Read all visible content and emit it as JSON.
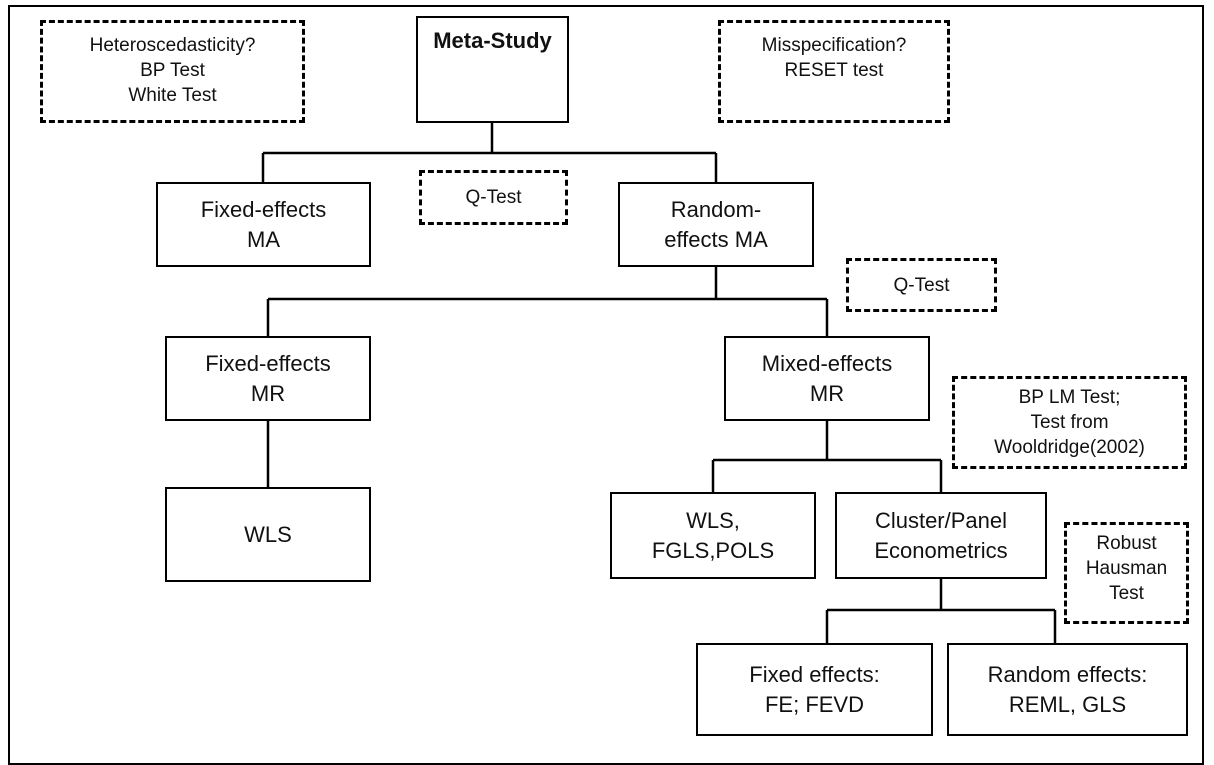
{
  "diagram": {
    "meta_study": [
      "Meta-Study"
    ],
    "fixed_effects_ma": [
      "Fixed-effects",
      "MA"
    ],
    "random_effects_ma": [
      "Random-",
      "effects MA"
    ],
    "fixed_effects_mr": [
      "Fixed-effects",
      "MR"
    ],
    "mixed_effects_mr": [
      "Mixed-effects",
      "MR"
    ],
    "wls": [
      "WLS"
    ],
    "wls_fgls_pols": [
      "WLS,",
      "FGLS,POLS"
    ],
    "cluster_panel": [
      "Cluster/Panel",
      "Econometrics"
    ],
    "fixed_effects_fe": [
      "Fixed effects:",
      "FE; FEVD"
    ],
    "random_effects_reml": [
      "Random effects:",
      "REML, GLS"
    ],
    "tests": {
      "heteroscedasticity": [
        "Heteroscedasticity?",
        "BP Test",
        "White Test"
      ],
      "misspecification": [
        "Misspecification?",
        "RESET test"
      ],
      "q_test_1": [
        "Q-Test"
      ],
      "q_test_2": [
        "Q-Test"
      ],
      "bp_lm": [
        "BP LM Test;",
        "Test from",
        "Wooldridge(2002)"
      ],
      "hausman": [
        "Robust",
        "Hausman",
        "Test"
      ]
    }
  }
}
